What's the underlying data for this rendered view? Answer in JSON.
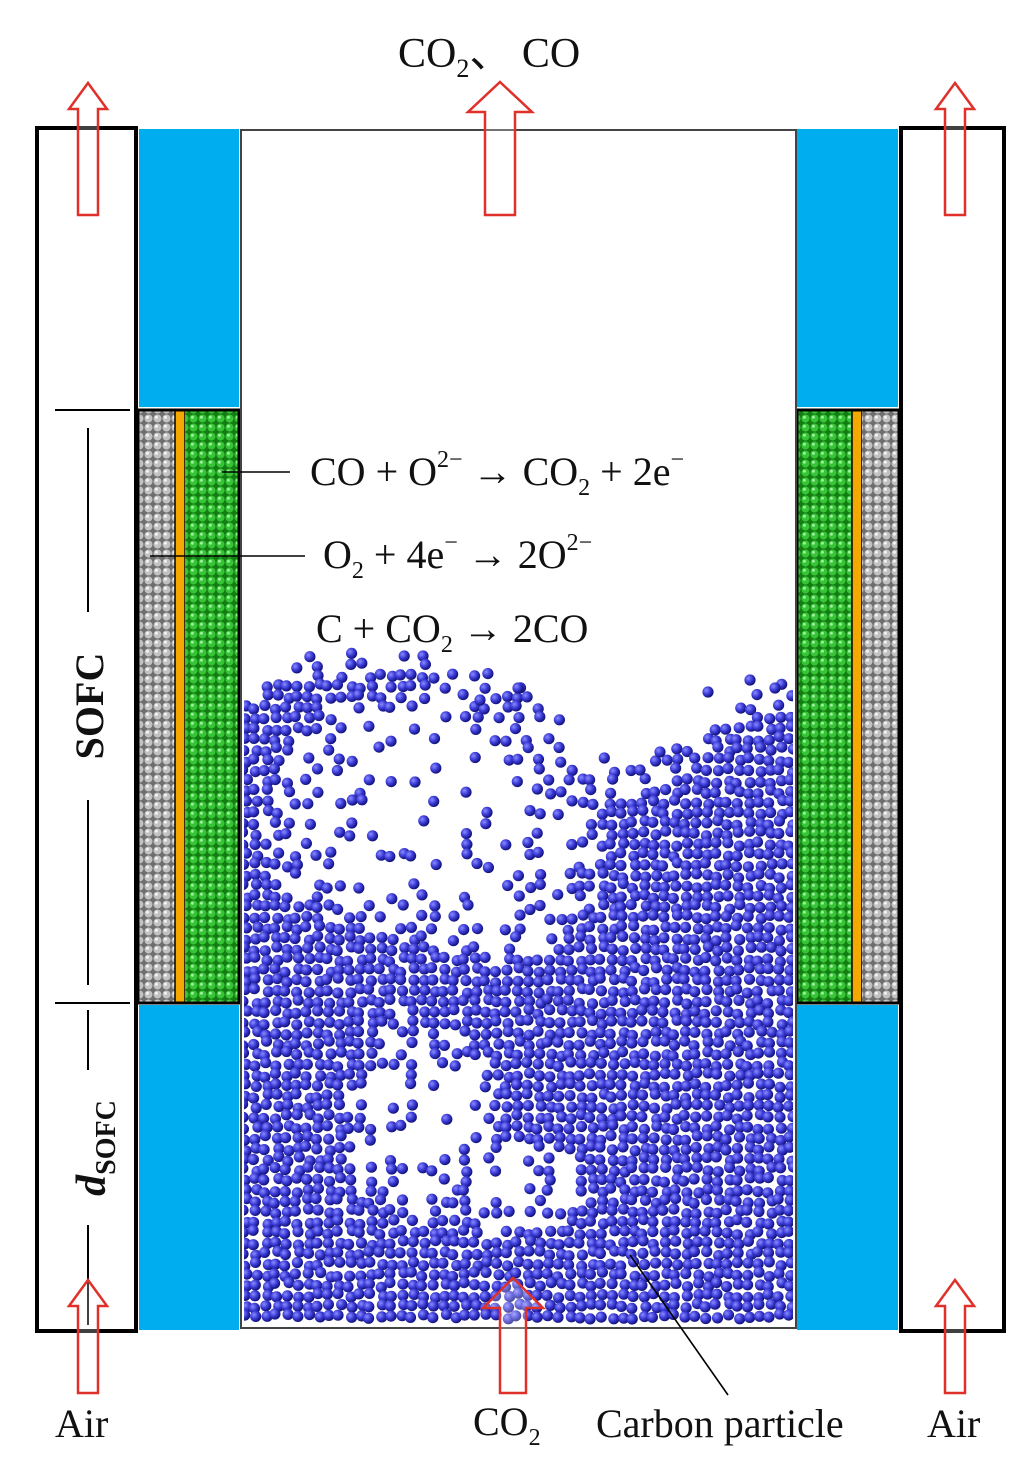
{
  "labels": {
    "top_outlet": [
      "CO",
      "2",
      "、 CO"
    ],
    "reaction_anode": [
      "CO + O",
      "2−",
      " → CO",
      "2",
      " + 2e",
      "−"
    ],
    "reaction_cathode": [
      "O",
      "2",
      " + 4e",
      "−",
      " → 2O",
      "2−"
    ],
    "reaction_boudouard": [
      "C + CO",
      "2",
      " → 2CO"
    ],
    "sofc": "SOFC",
    "d_sofc": [
      "d",
      "SOFC"
    ],
    "air_left": "Air",
    "air_right": "Air",
    "bottom_inlet": [
      "CO",
      "2"
    ],
    "carbon_particle": "Carbon particle"
  },
  "colors": {
    "insulation": "#00aeef",
    "anode": "#1ea51e",
    "cathode": "#a9a9a9",
    "electrolyte": "#f5a800",
    "particles": "#3232c8",
    "arrow": "#e0302a",
    "frame": "#000000"
  },
  "icons": {
    "flow_arrow": "hollow-up-arrow-icon"
  }
}
